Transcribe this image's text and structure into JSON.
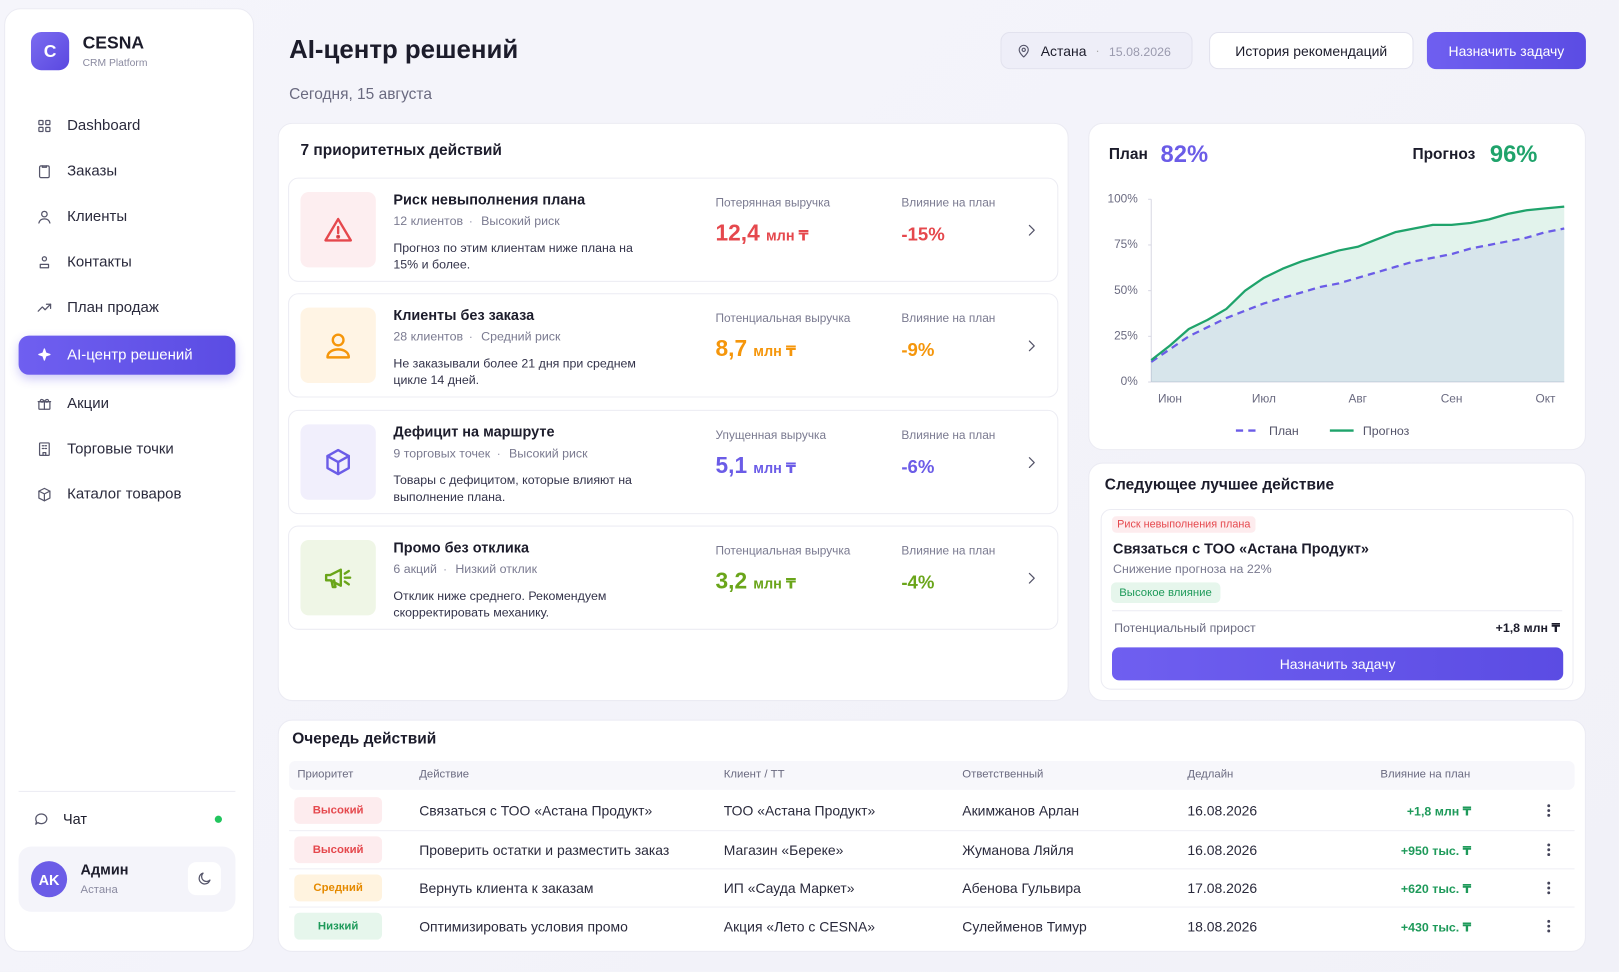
{
  "sidebar": {
    "logo_letter": "C",
    "brand": "CESNA",
    "brand_sub": "CRM Platform",
    "nav": [
      "Dashboard",
      "Заказы",
      "Клиенты",
      "Контакты",
      "План продаж",
      "AI-центр решений",
      "Акции",
      "Торговые точки",
      "Каталог товаров"
    ],
    "active_index": 5,
    "chat": "Чат",
    "user": {
      "initials": "AK",
      "name": "Админ",
      "city": "Астана"
    }
  },
  "header": {
    "title": "AI-центр решений",
    "date_line": "Сегодня, 15 августа",
    "location": "Астана",
    "location_date": "15.08.2026",
    "history_button": "История рекомендаций",
    "assign_button": "Назначить задачу"
  },
  "priority": {
    "title": "7 приоритетных действий",
    "items": [
      {
        "title": "Риск невыполнения плана",
        "meta": [
          "12 клиентов",
          "Высокий риск"
        ],
        "description": "Прогноз по этим клиентам ниже плана на 15% и более.",
        "metric_label": "Потерянная выручка",
        "metric_value": "12,4",
        "metric_unit": "млн ₸",
        "impact_label": "Влияние на план",
        "impact": "-15%",
        "color": "#e5484d",
        "bg": "#fdeef0"
      },
      {
        "title": "Клиенты без заказа",
        "meta": [
          "28 клиентов",
          "Средний риск"
        ],
        "description": "Не заказывали более 21 дня при среднем цикле 14 дней.",
        "metric_label": "Потенциальная выручка",
        "metric_value": "8,7",
        "metric_unit": "млн ₸",
        "impact_label": "Влияние на план",
        "impact": "-9%",
        "color": "#f5960b",
        "bg": "#fff4e4"
      },
      {
        "title": "Дефицит на маршруте",
        "meta": [
          "9 торговых точек",
          "Высокий риск"
        ],
        "description": "Товары с дефицитом, которые влияют на выполнение плана.",
        "metric_label": "Упущенная выручка",
        "metric_value": "5,1",
        "metric_unit": "млн ₸",
        "impact_label": "Влияние на план",
        "impact": "-6%",
        "color": "#6b5ce7",
        "bg": "#f1effc"
      },
      {
        "title": "Промо без отклика",
        "meta": [
          "6 акций",
          "Низкий отклик"
        ],
        "description": "Отклик ниже среднего. Рекомендуем скорректировать механику.",
        "metric_label": "Потенциальная выручка",
        "metric_value": "3,2",
        "metric_unit": "млн ₸",
        "impact_label": "Влияние на план",
        "impact": "-4%",
        "color": "#6aa51a",
        "bg": "#eff6e6"
      }
    ]
  },
  "kpi": {
    "plan_value": "82%",
    "forecast_value": "96%"
  },
  "chart_data": {
    "type": "line",
    "categories": [
      null,
      "Июн",
      null,
      null,
      null,
      null,
      "Июл",
      null,
      null,
      null,
      null,
      "Авг",
      null,
      null,
      null,
      null,
      "Сен",
      null,
      null,
      null,
      null,
      "Окт",
      null
    ],
    "series": [
      {
        "name": "План",
        "color": "#6b5ce7",
        "dashed": true,
        "values": [
          11,
          18,
          25,
          30,
          35,
          39,
          43,
          46,
          49,
          52,
          54,
          57,
          60,
          63,
          66,
          68,
          70,
          73,
          75,
          77,
          79,
          82,
          84
        ]
      },
      {
        "name": "Прогноз",
        "color": "#1fa36b",
        "dashed": false,
        "values": [
          12,
          20,
          29,
          34,
          40,
          50,
          57,
          62,
          66,
          69,
          72,
          74,
          78,
          82,
          84,
          86,
          86,
          87,
          89,
          92,
          94,
          95,
          96
        ]
      }
    ],
    "ylim": [
      0,
      100
    ],
    "yticks": [
      {
        "value": 0,
        "label": "0%"
      },
      {
        "value": 25,
        "label": "25%"
      },
      {
        "value": 50,
        "label": "50%"
      },
      {
        "value": 75,
        "label": "75%"
      },
      {
        "value": 100,
        "label": "100%"
      }
    ],
    "grid": false,
    "legend": "bottom"
  },
  "next_action": {
    "title": "Следующее лучшее действие",
    "tag": "Риск невыполнения плана",
    "headline": "Связаться с ТОО «Астана Продукт»",
    "subline": "Снижение прогноза на 22%",
    "badge": "Высокое влияние",
    "gain_label": "Потенциальный прирост",
    "gain_value": "+1,8 млн ₸",
    "button": "Назначить задачу"
  },
  "queue": {
    "title": "Очередь действий",
    "columns": [
      "Приоритет",
      "Действие",
      "Клиент / ТТ",
      "Ответственный",
      "Дедлайн",
      "Влияние на план"
    ],
    "rows": [
      {
        "priority": "Высокий",
        "priority_color": "#e5484d",
        "priority_bg": "#fdecee",
        "action": "Связаться с ТОО «Астана Продукт»",
        "client": "ТОО «Астана Продукт»",
        "owner": "Акимжанов Арлан",
        "deadline": "16.08.2026",
        "impact": "+1,8 млн ₸"
      },
      {
        "priority": "Высокий",
        "priority_color": "#e5484d",
        "priority_bg": "#fdecee",
        "action": "Проверить остатки и разместить заказ",
        "client": "Магазин «Береке»",
        "owner": "Жуманова Ляйля",
        "deadline": "16.08.2026",
        "impact": "+950 тыс. ₸"
      },
      {
        "priority": "Средний",
        "priority_color": "#e58a00",
        "priority_bg": "#fff3df",
        "action": "Вернуть клиента к заказам",
        "client": "ИП «Сауда Маркет»",
        "owner": "Абенова Гульвира",
        "deadline": "17.08.2026",
        "impact": "+620 тыс. ₸"
      },
      {
        "priority": "Низкий",
        "priority_color": "#1e9a5a",
        "priority_bg": "#e6f6ec",
        "action": "Оптимизировать условия промо",
        "client": "Акция «Лето с CESNA»",
        "owner": "Сулейменов Тимур",
        "deadline": "18.08.2026",
        "impact": "+430 тыс. ₸"
      }
    ]
  }
}
